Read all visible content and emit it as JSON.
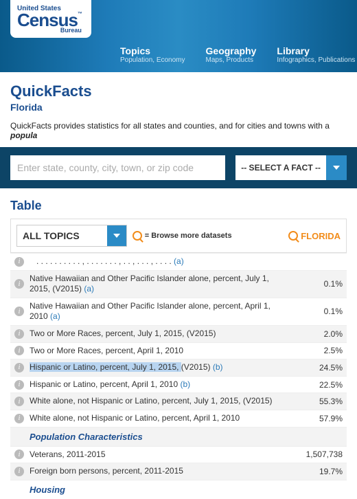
{
  "logo": {
    "us": "United States",
    "tm": "™",
    "census": "Census",
    "bureau": "Bureau"
  },
  "nav": {
    "topics": {
      "title": "Topics",
      "sub": "Population, Economy"
    },
    "geography": {
      "title": "Geography",
      "sub": "Maps, Products"
    },
    "library": {
      "title": "Library",
      "sub": "Infographics, Publications"
    }
  },
  "page": {
    "title": "QuickFacts",
    "subtitle": "Florida",
    "intro_prefix": "QuickFacts provides statistics for all states and counties, and for cities and towns with a ",
    "intro_em": "popula"
  },
  "search": {
    "placeholder": "Enter state, county, city, town, or zip code",
    "select_label": "-- SELECT A FACT --"
  },
  "table": {
    "section_title": "Table",
    "all_topics": "ALL TOPICS",
    "browse": "= Browse more datasets",
    "column_header": "FLORIDA"
  },
  "rows": [
    {
      "label": "Native Hawaiian and Other Pacific Islander alone, percent, July 1, 2015, (V2015) ",
      "link": "(a)",
      "value": "0.1%"
    },
    {
      "label": "Native Hawaiian and Other Pacific Islander alone, percent, April 1, 2010 ",
      "link": "(a)",
      "value": "0.1%"
    },
    {
      "label": "Two or More Races, percent, July 1, 2015, (V2015)",
      "link": "",
      "value": "2.0%"
    },
    {
      "label": "Two or More Races, percent, April 1, 2010",
      "link": "",
      "value": "2.5%"
    },
    {
      "label": "Hispanic or Latino, percent, July 1, 2015, (V2015) ",
      "link": "(b)",
      "value": "24.5%",
      "highlight": true
    },
    {
      "label": "Hispanic or Latino, percent, April 1, 2010 ",
      "link": "(b)",
      "value": "22.5%"
    },
    {
      "label": "White alone, not Hispanic or Latino, percent, July 1, 2015, (V2015)",
      "link": "",
      "value": "55.3%"
    },
    {
      "label": "White alone, not Hispanic or Latino, percent, April 1, 2010",
      "link": "",
      "value": "57.9%"
    }
  ],
  "groups": {
    "pop_char": "Population Characteristics",
    "housing": "Housing"
  },
  "rows2": [
    {
      "label": "Veterans, 2011-2015",
      "value": "1,507,738"
    },
    {
      "label": "Foreign born persons, percent, 2011-2015",
      "value": "19.7%"
    }
  ],
  "cutoff": {
    "link": "(a)"
  }
}
